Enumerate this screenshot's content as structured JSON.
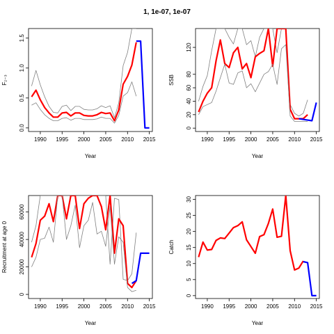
{
  "figure": {
    "title": "1, 1e-07, 1e-07"
  },
  "colors": {
    "estimate": "#ff0000",
    "ci": "#808080",
    "projection": "#0000ff"
  },
  "chart_data": [
    {
      "type": "line",
      "ylabel": "F₂₋₃",
      "xlabel": "Year",
      "xlim": [
        1987.3,
        2015.7
      ],
      "ylim": [
        -0.06,
        1.66
      ],
      "xticks": [
        1990,
        1995,
        2000,
        2005,
        2010,
        2015
      ],
      "yticks": [
        0.0,
        0.5,
        1.0,
        1.5
      ],
      "ytick_labels": [
        "0.0",
        "0.5",
        "1.0",
        "1.5"
      ],
      "series": [
        {
          "role": "upper",
          "x": [
            1988,
            1989,
            1990,
            1991,
            1992,
            1993,
            1994,
            1995,
            1996,
            1997,
            1998,
            1999,
            2000,
            2001,
            2002,
            2003,
            2004,
            2005,
            2006,
            2007,
            2008,
            2009,
            2010,
            2011,
            2012
          ],
          "y": [
            0.7,
            0.96,
            0.72,
            0.52,
            0.36,
            0.26,
            0.25,
            0.36,
            0.38,
            0.29,
            0.36,
            0.36,
            0.31,
            0.3,
            0.3,
            0.32,
            0.37,
            0.34,
            0.37,
            0.17,
            0.42,
            1.04,
            1.26,
            1.66,
            1.66
          ]
        },
        {
          "role": "estimate",
          "x": [
            1988,
            1989,
            1990,
            1991,
            1992,
            1993,
            1994,
            1995,
            1996,
            1997,
            1998,
            1999,
            2000,
            2001,
            2002,
            2003,
            2004,
            2005,
            2006,
            2007,
            2008,
            2009,
            2010,
            2011,
            2012
          ],
          "y": [
            0.52,
            0.63,
            0.47,
            0.34,
            0.25,
            0.18,
            0.18,
            0.25,
            0.26,
            0.2,
            0.25,
            0.25,
            0.21,
            0.2,
            0.2,
            0.22,
            0.26,
            0.24,
            0.25,
            0.12,
            0.3,
            0.73,
            0.86,
            1.05,
            1.43
          ]
        },
        {
          "role": "lower",
          "x": [
            1988,
            1989,
            1990,
            1991,
            1992,
            1993,
            1994,
            1995,
            1996,
            1997,
            1998,
            1999,
            2000,
            2001,
            2002,
            2003,
            2004,
            2005,
            2006,
            2007,
            2008,
            2009,
            2010,
            2011,
            2012
          ],
          "y": [
            0.38,
            0.42,
            0.31,
            0.22,
            0.16,
            0.12,
            0.12,
            0.16,
            0.17,
            0.13,
            0.16,
            0.16,
            0.14,
            0.14,
            0.14,
            0.15,
            0.18,
            0.16,
            0.16,
            0.08,
            0.21,
            0.53,
            0.59,
            0.77,
            0.53
          ]
        },
        {
          "role": "projection",
          "x": [
            2012,
            2013,
            2014,
            2015
          ],
          "y": [
            1.45,
            1.45,
            0.0,
            0.0
          ]
        }
      ]
    },
    {
      "type": "line",
      "ylabel": "SSB",
      "xlabel": "Year",
      "xlim": [
        1987.3,
        2015.7
      ],
      "ylim": [
        -5,
        148
      ],
      "xticks": [
        1990,
        1995,
        2000,
        2005,
        2010,
        2015
      ],
      "yticks": [
        0,
        20,
        40,
        60,
        80,
        120
      ],
      "ytick_labels": [
        "0",
        "20",
        "40",
        "60",
        "80",
        "120"
      ],
      "series": [
        {
          "role": "upper",
          "x": [
            1988,
            1989,
            1990,
            1991,
            1992,
            1993,
            1994,
            1995,
            1996,
            1997,
            1998,
            1999,
            2000,
            2001,
            2002,
            2003,
            2004,
            2005,
            2006,
            2007,
            2008,
            2009,
            2010,
            2011,
            2012,
            2013
          ],
          "y": [
            40,
            62,
            78,
            115,
            148,
            148,
            148,
            135,
            125,
            148,
            148,
            124,
            130,
            106,
            135,
            148,
            148,
            148,
            112,
            148,
            148,
            35,
            22,
            18,
            22,
            42
          ]
        },
        {
          "role": "estimate",
          "x": [
            1988,
            1989,
            1990,
            1991,
            1992,
            1993,
            1994,
            1995,
            1996,
            1997,
            1998,
            1999,
            2000,
            2001,
            2002,
            2003,
            2004,
            2005,
            2006,
            2007,
            2008,
            2009,
            2010,
            2011,
            2012,
            2013
          ],
          "y": [
            24,
            40,
            52,
            60,
            100,
            131,
            96,
            90,
            112,
            120,
            88,
            96,
            75,
            106,
            111,
            115,
            148,
            92,
            148,
            148,
            148,
            28,
            14,
            14,
            14,
            20
          ]
        },
        {
          "role": "lower",
          "x": [
            1988,
            1989,
            1990,
            1991,
            1992,
            1993,
            1994,
            1995,
            1996,
            1997,
            1998,
            1999,
            2000,
            2001,
            2002,
            2003,
            2004,
            2005,
            2006,
            2007,
            2008,
            2009,
            2010,
            2011,
            2012,
            2013
          ],
          "y": [
            20,
            32,
            35,
            38,
            55,
            75,
            95,
            67,
            65,
            82,
            85,
            60,
            66,
            54,
            67,
            80,
            84,
            95,
            65,
            118,
            124,
            18,
            10,
            10,
            10,
            10
          ]
        },
        {
          "role": "projection",
          "x": [
            2011,
            2012,
            2013,
            2014,
            2015
          ],
          "y": [
            14,
            13,
            12,
            11,
            38
          ]
        }
      ]
    },
    {
      "type": "line",
      "ylabel": "Recruitment at age 0",
      "xlabel": "Year",
      "xlim": [
        1987.3,
        2015.7
      ],
      "ylim": [
        -3000,
        72000
      ],
      "xticks": [
        1990,
        1995,
        2000,
        2005,
        2010,
        2015
      ],
      "yticks": [
        0,
        20000,
        40000,
        60000
      ],
      "ytick_labels": [
        "0",
        "20000",
        "40000",
        "60000"
      ],
      "series": [
        {
          "role": "upper",
          "x": [
            1988,
            1989,
            1990,
            1991,
            1992,
            1993,
            1994,
            1995,
            1996,
            1997,
            1998,
            1999,
            2000,
            2001,
            2002,
            2003,
            2004,
            2005,
            2006,
            2007,
            2008,
            2009,
            2010,
            2011,
            2012
          ],
          "y": [
            38000,
            50000,
            72000,
            72000,
            72000,
            72000,
            72000,
            72000,
            72000,
            72000,
            72000,
            72000,
            72000,
            72000,
            72000,
            72000,
            72000,
            72000,
            22000,
            70000,
            69000,
            11000,
            10000,
            15000,
            45000
          ]
        },
        {
          "role": "estimate",
          "x": [
            1988,
            1989,
            1990,
            1991,
            1992,
            1993,
            1994,
            1995,
            1996,
            1997,
            1998,
            1999,
            2000,
            2001,
            2002,
            2003,
            2004,
            2005,
            2006,
            2007,
            2008,
            2009,
            2010,
            2011,
            2012
          ],
          "y": [
            27000,
            37000,
            54000,
            57000,
            66000,
            53000,
            72000,
            72000,
            55000,
            72000,
            72000,
            48000,
            66000,
            70000,
            72000,
            72000,
            64000,
            47000,
            72000,
            30000,
            55000,
            50000,
            8000,
            5000,
            10000
          ]
        },
        {
          "role": "lower",
          "x": [
            1988,
            1989,
            1990,
            1991,
            1992,
            1993,
            1994,
            1995,
            1996,
            1997,
            1998,
            1999,
            2000,
            2001,
            2002,
            2003,
            2004,
            2005,
            2006,
            2007,
            2008,
            2009,
            2010,
            2011,
            2012
          ],
          "y": [
            20000,
            27000,
            40000,
            41000,
            49000,
            38000,
            72000,
            72000,
            40000,
            50000,
            65000,
            34000,
            50000,
            54000,
            67000,
            44000,
            46000,
            35000,
            64000,
            22000,
            42000,
            38000,
            5000,
            2000,
            3000
          ]
        },
        {
          "role": "projection",
          "x": [
            2011,
            2012,
            2013,
            2014,
            2015
          ],
          "y": [
            8000,
            10000,
            30000,
            30000,
            30000
          ]
        }
      ]
    },
    {
      "type": "line",
      "ylabel": "Catch",
      "xlabel": "Year",
      "xlim": [
        1987.3,
        2015.7
      ],
      "ylim": [
        -0.9,
        31.2
      ],
      "xticks": [
        1990,
        1995,
        2000,
        2005,
        2010,
        2015
      ],
      "yticks": [
        0,
        5,
        10,
        15,
        20,
        25,
        30
      ],
      "ytick_labels": [
        "0",
        "5",
        "10",
        "15",
        "20",
        "25",
        "30"
      ],
      "series": [
        {
          "role": "estimate",
          "x": [
            1988,
            1989,
            1990,
            1991,
            1992,
            1993,
            1994,
            1995,
            1996,
            1997,
            1998,
            1999,
            2000,
            2001,
            2002,
            2003,
            2004,
            2005,
            2006,
            2007,
            2008,
            2009,
            2010,
            2011,
            2012
          ],
          "y": [
            12,
            16.7,
            14.2,
            14.4,
            17.2,
            18.0,
            17.8,
            19.5,
            21.2,
            21.8,
            23.0,
            17.4,
            15.3,
            13.2,
            18.4,
            19.0,
            22.5,
            27.0,
            18.2,
            18.5,
            31.2,
            14.0,
            8.0,
            8.6,
            10.8
          ]
        },
        {
          "role": "projection",
          "x": [
            2012,
            2013,
            2014,
            2015
          ],
          "y": [
            10.6,
            10.3,
            0,
            0
          ]
        }
      ]
    }
  ]
}
